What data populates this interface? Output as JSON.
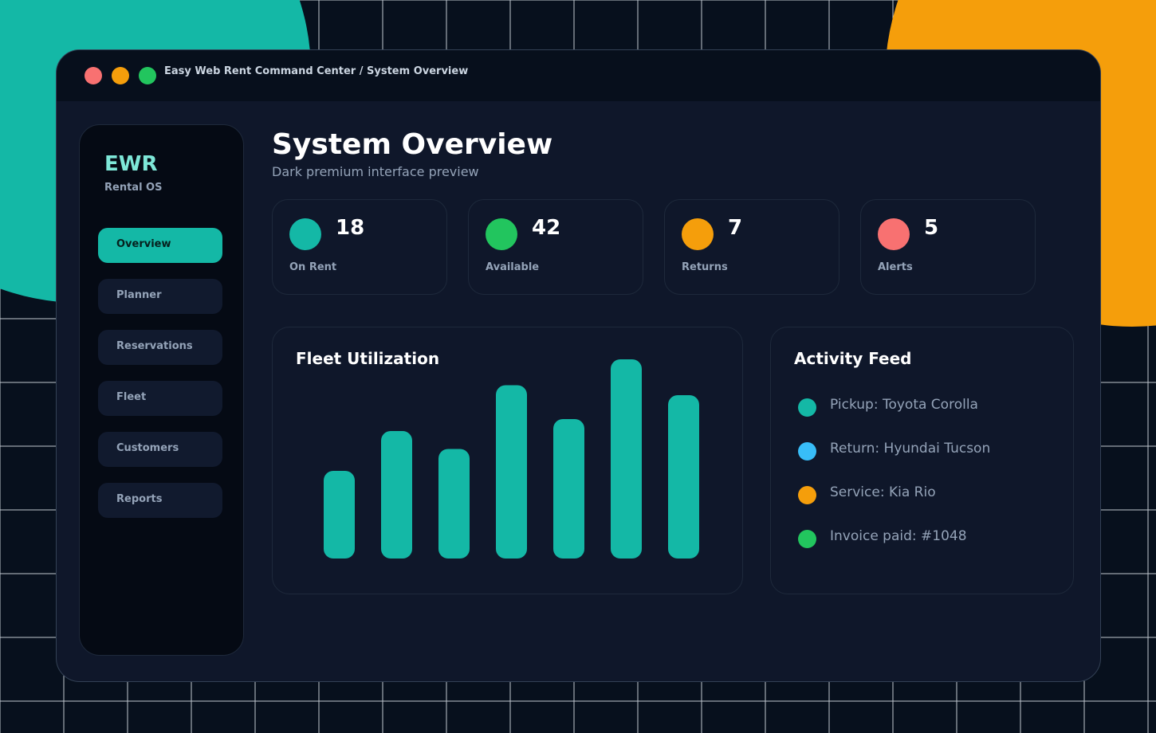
{
  "window": {
    "title": "Easy Web Rent Command Center / System Overview"
  },
  "sidebar": {
    "brand": "EWR",
    "tagline": "Rental OS",
    "nav": [
      "Overview",
      "Planner",
      "Reservations",
      "Fleet",
      "Customers",
      "Reports"
    ]
  },
  "header": {
    "title": "System Overview",
    "subtitle": "Dark premium interface preview"
  },
  "stats": [
    {
      "value": 18,
      "label": "On Rent",
      "color": "#14b8a6"
    },
    {
      "value": 42,
      "label": "Available",
      "color": "#22c55e"
    },
    {
      "value": 7,
      "label": "Returns",
      "color": "#f59e0b"
    },
    {
      "value": 5,
      "label": "Alerts",
      "color": "#f87171"
    }
  ],
  "chart_data": {
    "type": "bar",
    "title": "Fleet Utilization",
    "values": [
      44,
      64,
      55,
      87,
      70,
      100,
      82
    ],
    "color": "#14b8a6",
    "ylim": [
      0,
      100
    ]
  },
  "activity": {
    "title": "Activity Feed",
    "items": [
      {
        "text": "Pickup: Toyota Corolla",
        "color": "#14b8a6"
      },
      {
        "text": "Return: Hyundai Tucson",
        "color": "#38bdf8"
      },
      {
        "text": "Service: Kia Rio",
        "color": "#f59e0b"
      },
      {
        "text": "Invoice paid: #1048",
        "color": "#22c55e"
      }
    ]
  }
}
